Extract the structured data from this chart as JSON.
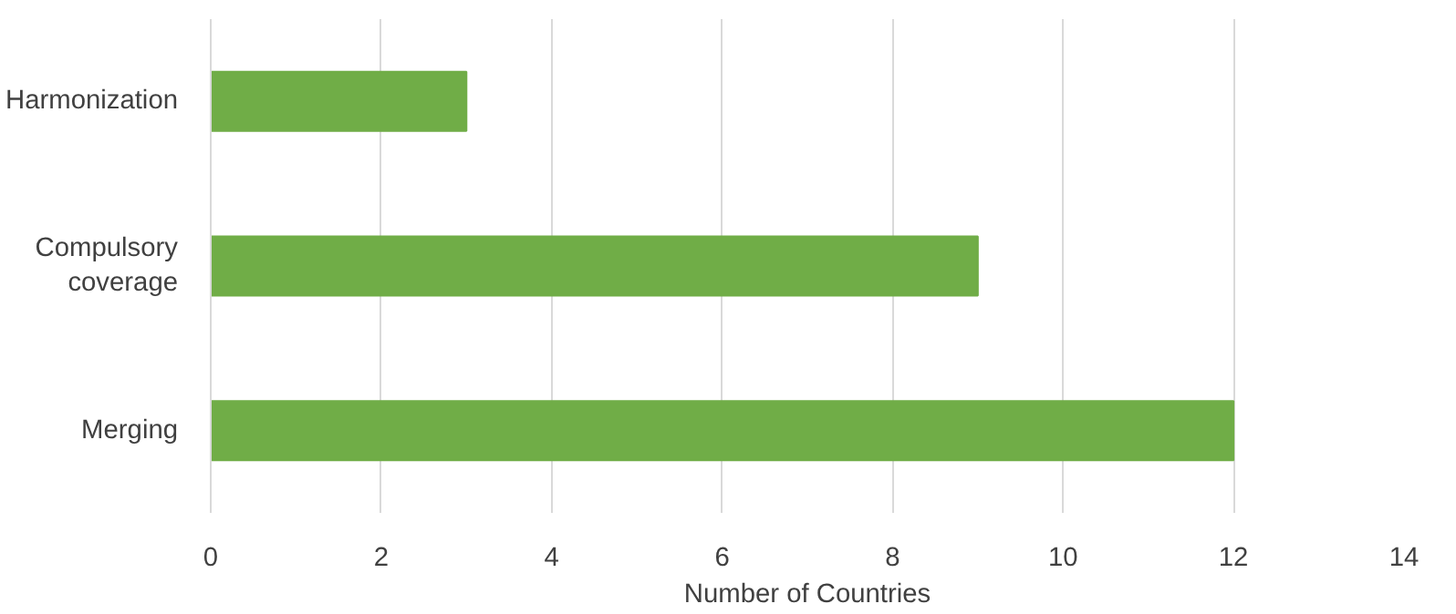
{
  "chart_data": {
    "type": "bar",
    "orientation": "horizontal",
    "categories": [
      "Harmonization",
      "Compulsory coverage",
      "Merging"
    ],
    "values": [
      3,
      9,
      12
    ],
    "color": "#70ad47",
    "xlabel": "Number of Countries",
    "xlim": [
      0,
      14
    ],
    "xticks": [
      0,
      2,
      4,
      6,
      8,
      10,
      12,
      14
    ],
    "grid": "x"
  }
}
